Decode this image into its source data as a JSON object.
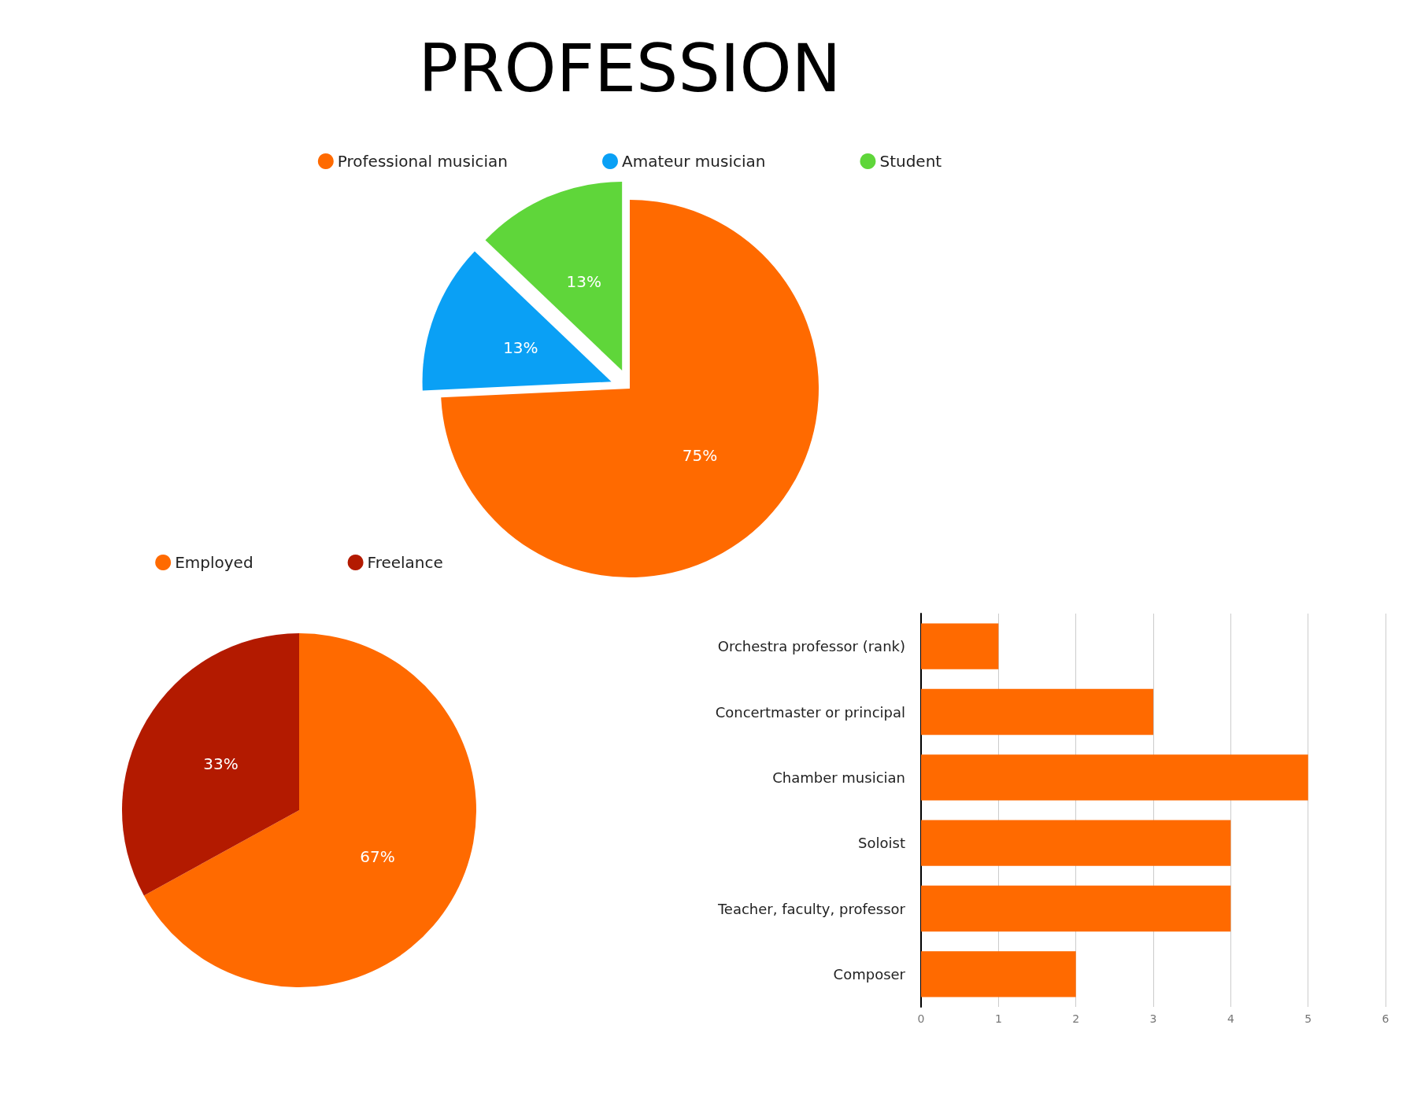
{
  "chart_data": [
    {
      "type": "pie",
      "title": "PROFESSION",
      "categories": [
        "Professional musician",
        "Amateur musician",
        "Student"
      ],
      "values": [
        75,
        13,
        13
      ],
      "colors": [
        "#ff6a00",
        "#0aa0f5",
        "#5fd63a"
      ],
      "value_labels": [
        "75%",
        "13%",
        "13%"
      ],
      "legend": "top"
    },
    {
      "type": "pie",
      "categories": [
        "Employed",
        "Freelance"
      ],
      "values": [
        67,
        33
      ],
      "colors": [
        "#ff6a00",
        "#b31a00"
      ],
      "value_labels": [
        "67%",
        "33%"
      ],
      "legend": "top"
    },
    {
      "type": "bar",
      "orientation": "horizontal",
      "categories": [
        "Orchestra professor (rank)",
        "Concertmaster or principal",
        "Chamber musician",
        "Soloist",
        "Teacher, faculty, professor",
        "Composer"
      ],
      "values": [
        1,
        3,
        5,
        4,
        4,
        2
      ],
      "color": "#ff6a00",
      "xlim": [
        0,
        6
      ],
      "xticks": [
        0,
        1,
        2,
        3,
        4,
        5,
        6
      ],
      "grid": "x"
    }
  ]
}
